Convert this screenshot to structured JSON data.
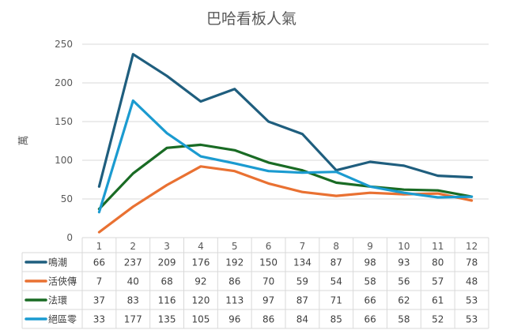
{
  "chart_data": {
    "type": "line",
    "title": "巴哈看板人氣",
    "ylabel": "萬",
    "xlabel": "",
    "ylim": [
      0,
      250
    ],
    "y_ticks": [
      0,
      50,
      100,
      150,
      200,
      250
    ],
    "grid": true,
    "legend_placement": "data-table-left",
    "categories": [
      "1",
      "2",
      "3",
      "4",
      "5",
      "6",
      "7",
      "8",
      "9",
      "10",
      "11",
      "12"
    ],
    "series": [
      {
        "name": "鳴潮",
        "color": "#1F5E7E",
        "values": [
          66,
          237,
          209,
          176,
          192,
          150,
          134,
          87,
          98,
          93,
          80,
          78
        ]
      },
      {
        "name": "活俠傳",
        "color": "#E97132",
        "values": [
          7,
          40,
          68,
          92,
          86,
          70,
          59,
          54,
          58,
          56,
          57,
          48
        ]
      },
      {
        "name": "法環",
        "color": "#196B24",
        "values": [
          37,
          83,
          116,
          120,
          113,
          97,
          87,
          71,
          66,
          62,
          61,
          53
        ]
      },
      {
        "name": "絕區零",
        "color": "#1B9BD0",
        "values": [
          33,
          177,
          135,
          105,
          96,
          86,
          84,
          85,
          66,
          58,
          52,
          53
        ]
      }
    ]
  }
}
